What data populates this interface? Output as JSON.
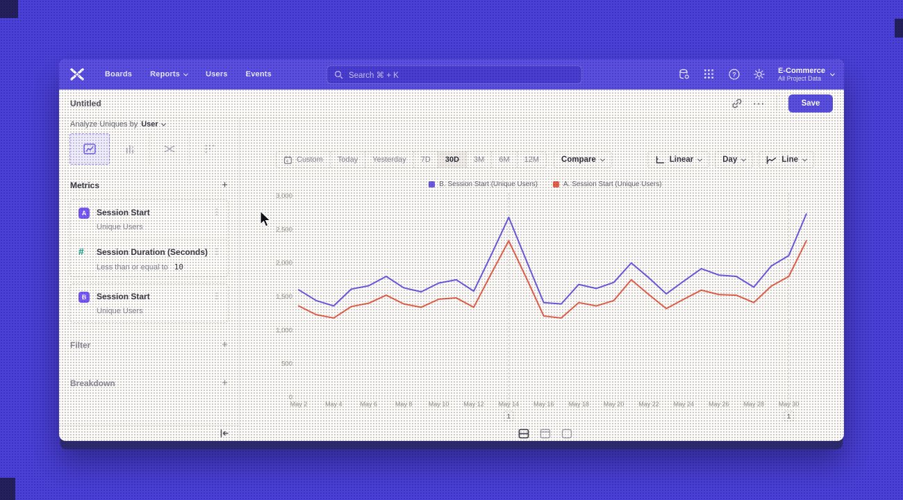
{
  "nav": {
    "items": [
      "Boards",
      "Reports",
      "Users",
      "Events"
    ],
    "search_placeholder": "Search  ⌘ + K",
    "project": {
      "name": "E-Commerce",
      "subtitle": "All Project Data"
    }
  },
  "header": {
    "title": "Untitled",
    "save_label": "Save",
    "ellipsis": "···"
  },
  "sidebar": {
    "analyze_prefix": "Analyze Uniques by",
    "analyze_value": "User",
    "metrics_title": "Metrics",
    "metrics": [
      {
        "badge": "A",
        "title": "Session Start",
        "subtitle": "Unique Users"
      },
      {
        "badge": "#",
        "title": "Session Duration (Seconds)",
        "subtitle_prefix": "Less than or equal to",
        "subtitle_value": "10"
      },
      {
        "badge": "B",
        "title": "Session Start",
        "subtitle": "Unique Users"
      }
    ],
    "kebab_glyph": "⋮",
    "plus_glyph": "+",
    "sections": [
      {
        "label": "Filter"
      },
      {
        "label": "Breakdown"
      }
    ]
  },
  "toolbar": {
    "ranges": [
      "Custom",
      "Today",
      "Yesterday",
      "7D",
      "30D",
      "3M",
      "6M",
      "12M"
    ],
    "active_range": "30D",
    "compare_label": "Compare",
    "scale_label": "Linear",
    "interval_label": "Day",
    "chart_type_label": "Line"
  },
  "icons": {
    "help_glyph": "?"
  },
  "chart_data": {
    "type": "line",
    "title": "",
    "x": [
      "May 2",
      "May 3",
      "May 4",
      "May 5",
      "May 6",
      "May 7",
      "May 8",
      "May 9",
      "May 10",
      "May 11",
      "May 12",
      "May 13",
      "May 14",
      "May 15",
      "May 16",
      "May 17",
      "May 18",
      "May 19",
      "May 20",
      "May 21",
      "May 22",
      "May 23",
      "May 24",
      "May 25",
      "May 26",
      "May 27",
      "May 28",
      "May 29",
      "May 30",
      "May 31"
    ],
    "xtick_step": 2,
    "series": [
      {
        "name": "B. Session Start (Unique Users)",
        "color": "#6C5BE0",
        "values": [
          1600,
          1440,
          1360,
          1610,
          1660,
          1800,
          1630,
          1570,
          1700,
          1750,
          1580,
          2120,
          2680,
          2040,
          1410,
          1390,
          1680,
          1620,
          1710,
          2000,
          1780,
          1540,
          1730,
          1915,
          1820,
          1800,
          1640,
          1955,
          2110,
          2730
        ]
      },
      {
        "name": "A. Session Start (Unique Users)",
        "color": "#E8614B",
        "values": [
          1360,
          1230,
          1180,
          1350,
          1400,
          1520,
          1390,
          1340,
          1460,
          1480,
          1340,
          1840,
          2330,
          1780,
          1210,
          1180,
          1410,
          1360,
          1440,
          1750,
          1530,
          1320,
          1460,
          1595,
          1530,
          1520,
          1410,
          1655,
          1800,
          2330
        ]
      }
    ],
    "ylim": [
      0,
      3000
    ],
    "yticks": [
      0,
      500,
      1000,
      1500,
      2000,
      2500,
      3000
    ],
    "grid": "horizontal-dotted",
    "legend_position": "top",
    "annotations": [
      {
        "x_index": 12,
        "label": "1"
      },
      {
        "x_index": 28,
        "label": "1"
      }
    ]
  }
}
